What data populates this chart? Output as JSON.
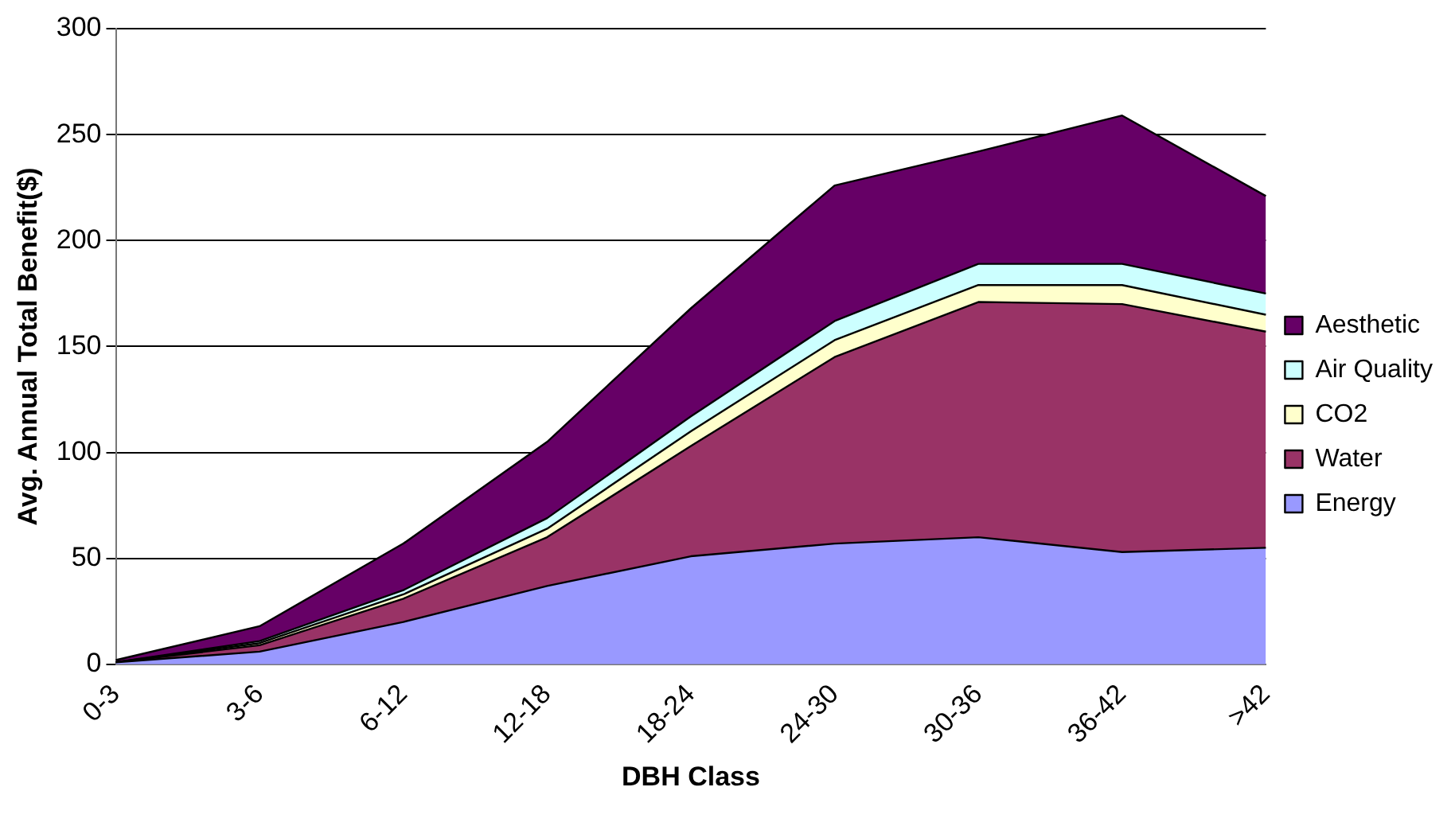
{
  "chart_data": {
    "type": "area",
    "stacked": true,
    "xlabel": "DBH Class",
    "ylabel": "Avg. Annual Total Benefit($)",
    "categories": [
      "0-3",
      "3-6",
      "6-12",
      "12-18",
      "18-24",
      "24-30",
      "30-36",
      "36-42",
      ">42"
    ],
    "series": [
      {
        "name": "Energy",
        "color": "#9999ff",
        "values": [
          1,
          6,
          20,
          37,
          51,
          57,
          60,
          53,
          55
        ]
      },
      {
        "name": "Water",
        "color": "#993366",
        "values": [
          0,
          3,
          11,
          23,
          52,
          88,
          111,
          117,
          102
        ]
      },
      {
        "name": "CO2",
        "color": "#ffffcc",
        "values": [
          0,
          1,
          2,
          4,
          7,
          8,
          8,
          9,
          8
        ]
      },
      {
        "name": "Air Quality",
        "color": "#ccffff",
        "values": [
          0,
          1,
          2,
          5,
          7,
          9,
          10,
          10,
          10
        ]
      },
      {
        "name": "Aesthetic",
        "color": "#660066",
        "values": [
          1,
          7,
          22,
          36,
          51,
          64,
          53,
          70,
          46
        ]
      }
    ],
    "ylim": [
      0,
      300
    ],
    "yticks": [
      0,
      50,
      100,
      150,
      200,
      250,
      300
    ],
    "grid": "y",
    "legend": "right"
  }
}
